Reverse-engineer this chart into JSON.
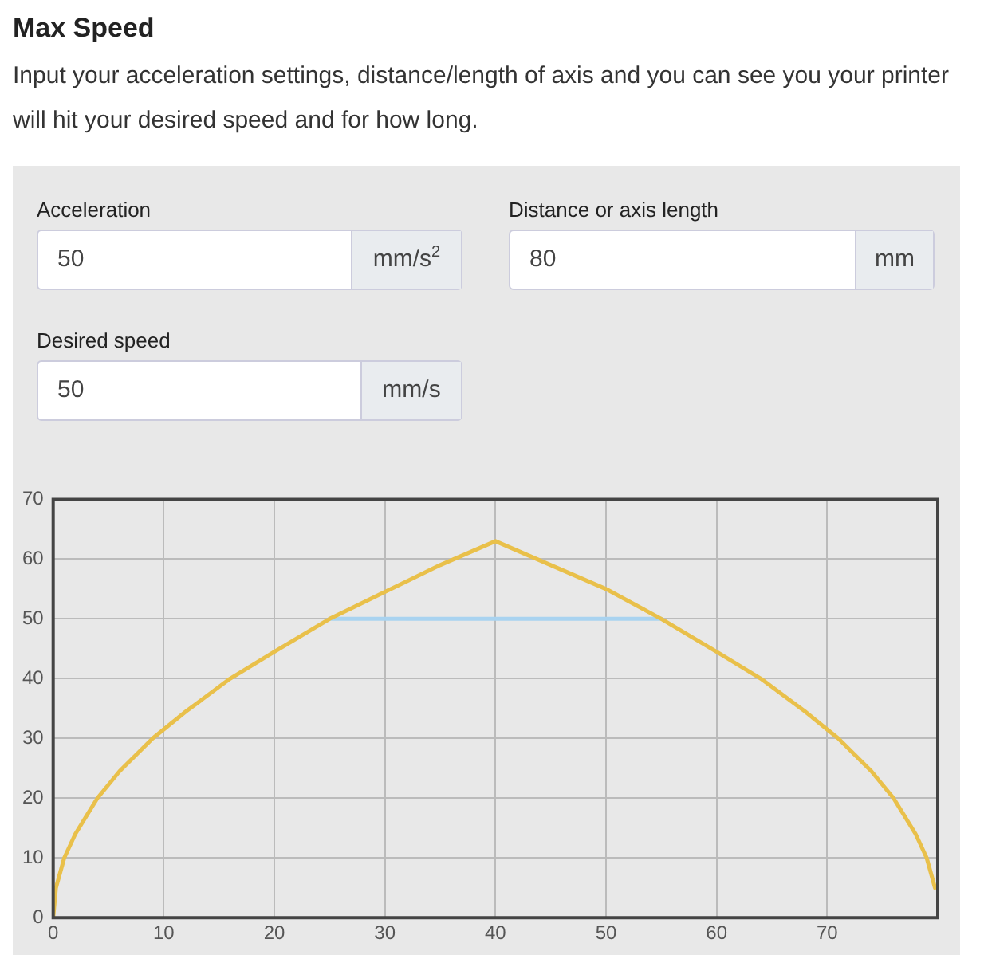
{
  "chart_data": {
    "type": "line",
    "title": "Max Speed",
    "subtitle": "Input your acceleration settings, distance/length of axis and you can see you your printer will hit your desired speed and for how long.",
    "annotations": [
      "Acceleration",
      "50",
      "mm/s$^{2}$",
      "Distance or axis length",
      "80",
      "mm",
      "Desired speed",
      "50",
      "mm/s"
    ],
    "series": [
      {
        "color": "#e9c04a",
        "x": [
          0,
          0.25,
          1,
          2,
          4,
          6,
          9,
          12,
          16,
          20,
          25,
          30,
          35,
          40,
          45,
          50,
          55,
          60,
          64,
          68,
          71,
          74,
          76,
          78,
          79,
          79.75
        ],
        "values": [
          0,
          5,
          10,
          14,
          20,
          24.5,
          30,
          34.5,
          40,
          44.5,
          50,
          54.5,
          59,
          63,
          59,
          55,
          50,
          44.5,
          40,
          34.5,
          30,
          24.5,
          20,
          14,
          10,
          5
        ]
      },
      {
        "color": "#a9d3f0",
        "x": [
          25,
          55
        ],
        "values": [
          50,
          50
        ]
      }
    ],
    "xlim": [
      0,
      80
    ],
    "xticks": [
      0,
      10,
      20,
      30,
      40,
      50,
      60,
      70
    ],
    "ylim": [
      0,
      70
    ],
    "yticks": [
      0,
      10,
      20,
      30,
      40,
      50,
      60,
      70
    ],
    "grid": true,
    "marker": "none",
    "line_style": "solid"
  }
}
